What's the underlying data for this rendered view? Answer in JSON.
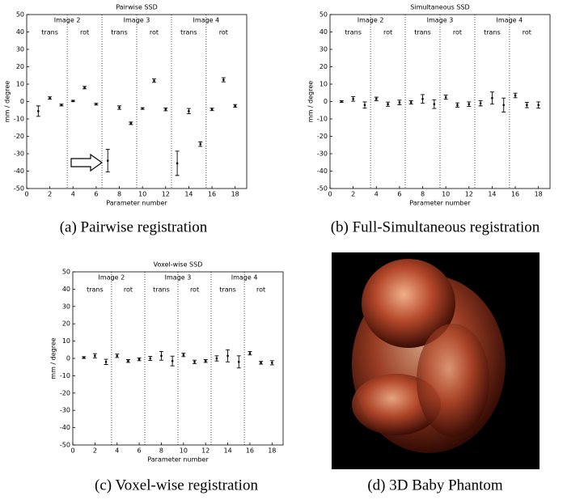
{
  "chart_data": [
    {
      "type": "errorbar",
      "title": "Pairwise SSD",
      "xlabel": "Parameter number",
      "ylabel": "mm / degree",
      "caption": "(a) Pairwise registration",
      "x": [
        1,
        2,
        3,
        4,
        5,
        6,
        7,
        8,
        9,
        10,
        11,
        12,
        13,
        14,
        15,
        16,
        17,
        18
      ],
      "values": [
        -5.5,
        2,
        -2,
        0.3,
        8,
        -1.5,
        -34,
        -3.5,
        -12.5,
        -4,
        12,
        -4.5,
        -35.5,
        -5.5,
        -24.5,
        -4.5,
        12.5,
        -2.5
      ],
      "errors": [
        3,
        0.7,
        0.5,
        0.4,
        0.7,
        0.5,
        6.5,
        1,
        0.7,
        0.5,
        1,
        0.8,
        7,
        1.5,
        1.3,
        0.7,
        1.2,
        0.8
      ],
      "xlim": [
        0,
        19
      ],
      "ylim": [
        -50,
        50
      ],
      "xticks": [
        0,
        2,
        4,
        6,
        8,
        10,
        12,
        14,
        16,
        18
      ],
      "yticks": [
        -50,
        -40,
        -30,
        -20,
        -10,
        0,
        10,
        20,
        30,
        40,
        50
      ],
      "groups": [
        "Image 2",
        "Image 3",
        "Image 4"
      ],
      "subgroups": [
        "trans",
        "rot"
      ],
      "dividers": [
        3.5,
        6.5,
        9.5,
        12.5,
        15.5
      ],
      "color": "#000000"
    },
    {
      "type": "errorbar",
      "title": "Simultaneous SSD",
      "xlabel": "Parameter number",
      "ylabel": "mm / degree",
      "caption": "(b) Full-Simultaneous registration",
      "x": [
        1,
        2,
        3,
        4,
        5,
        6,
        7,
        8,
        9,
        10,
        11,
        12,
        13,
        14,
        15,
        16,
        17,
        18
      ],
      "values": [
        0,
        1.5,
        -2,
        1.5,
        -1.5,
        -0.5,
        -0.5,
        1.5,
        -1.5,
        2.5,
        -2,
        -1.5,
        -1,
        2,
        -2,
        3.5,
        -2,
        -2
      ],
      "errors": [
        0.5,
        1.3,
        1.8,
        1,
        1.2,
        1.3,
        1,
        2.5,
        2.5,
        1.2,
        1.2,
        1.3,
        1.5,
        3.5,
        4,
        1.3,
        1.5,
        1.8
      ],
      "xlim": [
        0,
        19
      ],
      "ylim": [
        -50,
        50
      ],
      "xticks": [
        0,
        2,
        4,
        6,
        8,
        10,
        12,
        14,
        16,
        18
      ],
      "yticks": [
        -50,
        -40,
        -30,
        -20,
        -10,
        0,
        10,
        20,
        30,
        40,
        50
      ],
      "groups": [
        "Image 2",
        "Image 3",
        "Image 4"
      ],
      "subgroups": [
        "trans",
        "rot"
      ],
      "dividers": [
        3.5,
        6.5,
        9.5,
        12.5,
        15.5
      ],
      "color": "#000000"
    },
    {
      "type": "errorbar",
      "title": "Voxel-wise SSD",
      "xlabel": "Parameter number",
      "ylabel": "mm / degree",
      "caption": "(c) Voxel-wise registration",
      "x": [
        1,
        2,
        3,
        4,
        5,
        6,
        7,
        8,
        9,
        10,
        11,
        12,
        13,
        14,
        15,
        16,
        17,
        18
      ],
      "values": [
        0.5,
        1.5,
        -2,
        1.5,
        -1.5,
        -0.5,
        0,
        1.5,
        -1.5,
        2,
        -2,
        -1.5,
        0,
        1.5,
        -2,
        3,
        -2.5,
        -2.5
      ],
      "errors": [
        0.5,
        1.2,
        1.5,
        1,
        0.8,
        0.8,
        1.2,
        2.5,
        2.8,
        1,
        1,
        0.8,
        1.5,
        3.5,
        3.5,
        1,
        0.8,
        1.2
      ],
      "xlim": [
        0,
        19
      ],
      "ylim": [
        -50,
        50
      ],
      "xticks": [
        0,
        2,
        4,
        6,
        8,
        10,
        12,
        14,
        16,
        18
      ],
      "yticks": [
        -50,
        -40,
        -30,
        -20,
        -10,
        0,
        10,
        20,
        30,
        40,
        50
      ],
      "groups": [
        "Image 2",
        "Image 3",
        "Image 4"
      ],
      "subgroups": [
        "trans",
        "rot"
      ],
      "dividers": [
        3.5,
        6.5,
        9.5,
        12.5,
        15.5
      ],
      "color": "#000000"
    }
  ],
  "panel_d": {
    "caption": "(d) 3D Baby Phantom"
  }
}
